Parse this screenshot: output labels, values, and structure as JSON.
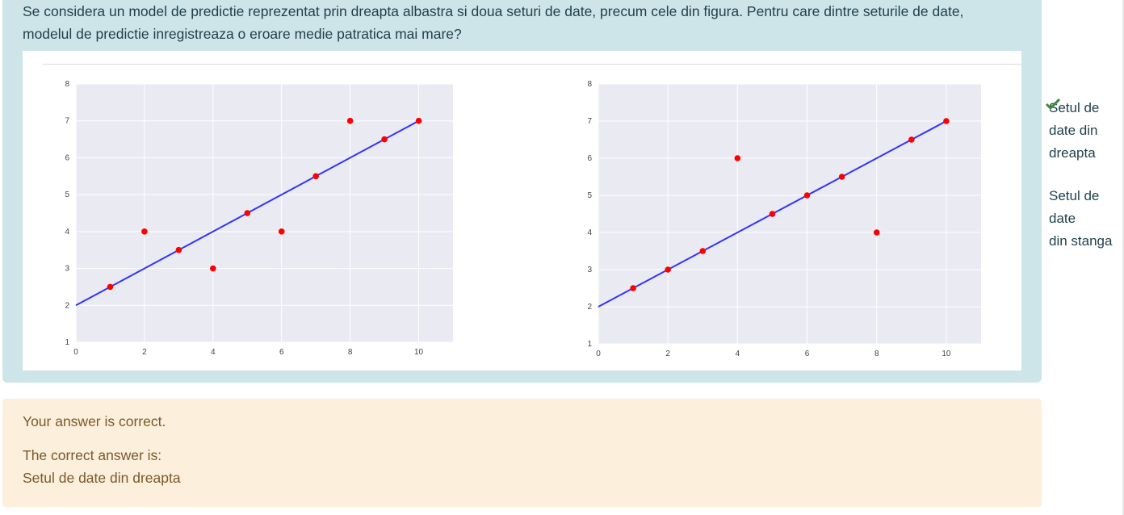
{
  "question": {
    "text": "Se considera un model de predictie reprezentat prin dreapta albastra si doua seturi de date, precum cele din figura. Pentru care dintre seturile de date, modelul de predictie inregistreaza o eroare medie patratica mai mare?"
  },
  "answers": {
    "option1": [
      "Setul de",
      "date din",
      "dreapta"
    ],
    "option2": [
      "Setul de",
      "date",
      "din stanga"
    ],
    "option1_icon": "check-icon"
  },
  "feedback": {
    "status": "Your answer is correct.",
    "label": "The correct answer is:",
    "answer": "Setul de date din dreapta"
  },
  "colors": {
    "question_bg": "#cde5e9",
    "feedback_bg": "#fcefdc",
    "plot_bg": "#eaeaf2",
    "line": "#3333ff",
    "points": "#ff0000",
    "check": "#3d8b3d"
  },
  "chart_data": [
    {
      "type": "scatter",
      "title": "",
      "xlabel": "",
      "ylabel": "",
      "xlim": [
        0,
        11
      ],
      "ylim": [
        1,
        8
      ],
      "xticks": [
        "0",
        "2",
        "4",
        "6",
        "8",
        "10"
      ],
      "yticks": [
        "1",
        "2",
        "3",
        "4",
        "5",
        "6",
        "7",
        "8"
      ],
      "grid": true,
      "points": [
        [
          1,
          2.5
        ],
        [
          2,
          4
        ],
        [
          3,
          3.5
        ],
        [
          4,
          3
        ],
        [
          5,
          4.5
        ],
        [
          6,
          4
        ],
        [
          7,
          5.5
        ],
        [
          8,
          7
        ],
        [
          9,
          6.5
        ],
        [
          10,
          7
        ]
      ],
      "line": [
        [
          0,
          2
        ],
        [
          10,
          7
        ]
      ]
    },
    {
      "type": "scatter",
      "title": "",
      "xlabel": "",
      "ylabel": "",
      "xlim": [
        0,
        11
      ],
      "ylim": [
        1,
        8
      ],
      "xticks": [
        "0",
        "2",
        "4",
        "6",
        "8",
        "10"
      ],
      "yticks": [
        "1",
        "2",
        "3",
        "4",
        "5",
        "6",
        "7",
        "8"
      ],
      "grid": true,
      "points": [
        [
          1,
          2.5
        ],
        [
          2,
          3
        ],
        [
          3,
          3.5
        ],
        [
          4,
          6
        ],
        [
          5,
          4.5
        ],
        [
          6,
          5
        ],
        [
          7,
          5.5
        ],
        [
          8,
          4
        ],
        [
          9,
          6.5
        ],
        [
          10,
          7
        ]
      ],
      "line": [
        [
          0,
          2
        ],
        [
          10,
          7
        ]
      ]
    }
  ]
}
